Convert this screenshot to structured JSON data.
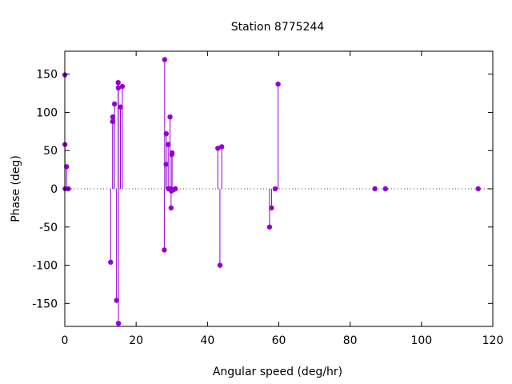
{
  "chart_data": {
    "type": "scatter",
    "style": "impulses-with-points",
    "title": "Station 8775244",
    "xlabel": "Angular speed (deg/hr)",
    "ylabel": "Phase (deg)",
    "xlim": [
      0,
      120
    ],
    "ylim": [
      -180,
      180
    ],
    "xticks": [
      0,
      20,
      40,
      60,
      80,
      100,
      120
    ],
    "yticks": [
      -150,
      -100,
      -50,
      0,
      50,
      100,
      150
    ],
    "zero_line": "dotted",
    "grid": false,
    "color": "#9400d3",
    "points": [
      {
        "x": 0.0,
        "y": 149
      },
      {
        "x": 0.04,
        "y": 58
      },
      {
        "x": 0.08,
        "y": 0
      },
      {
        "x": 0.5,
        "y": 29
      },
      {
        "x": 1.0,
        "y": 0
      },
      {
        "x": 12.85,
        "y": -96
      },
      {
        "x": 13.4,
        "y": 88
      },
      {
        "x": 13.45,
        "y": 94
      },
      {
        "x": 13.94,
        "y": 111
      },
      {
        "x": 14.5,
        "y": -146
      },
      {
        "x": 14.96,
        "y": 139
      },
      {
        "x": 15.0,
        "y": 132
      },
      {
        "x": 15.04,
        "y": -176
      },
      {
        "x": 15.59,
        "y": 107
      },
      {
        "x": 16.14,
        "y": 134
      },
      {
        "x": 27.9,
        "y": -80
      },
      {
        "x": 28.0,
        "y": 169
      },
      {
        "x": 28.4,
        "y": 32
      },
      {
        "x": 28.44,
        "y": 72
      },
      {
        "x": 28.98,
        "y": 58
      },
      {
        "x": 29.1,
        "y": 0
      },
      {
        "x": 29.5,
        "y": 94
      },
      {
        "x": 29.53,
        "y": 0
      },
      {
        "x": 29.8,
        "y": -25
      },
      {
        "x": 29.9,
        "y": -3
      },
      {
        "x": 30.0,
        "y": 45
      },
      {
        "x": 30.08,
        "y": 47
      },
      {
        "x": 30.5,
        "y": -1
      },
      {
        "x": 31.0,
        "y": 0
      },
      {
        "x": 42.9,
        "y": 53
      },
      {
        "x": 43.5,
        "y": -100
      },
      {
        "x": 44.0,
        "y": 55
      },
      {
        "x": 57.4,
        "y": -50
      },
      {
        "x": 57.97,
        "y": -25
      },
      {
        "x": 58.98,
        "y": 0
      },
      {
        "x": 59.8,
        "y": 137
      },
      {
        "x": 86.95,
        "y": 0
      },
      {
        "x": 89.9,
        "y": 0
      },
      {
        "x": 115.9,
        "y": 0
      }
    ]
  }
}
